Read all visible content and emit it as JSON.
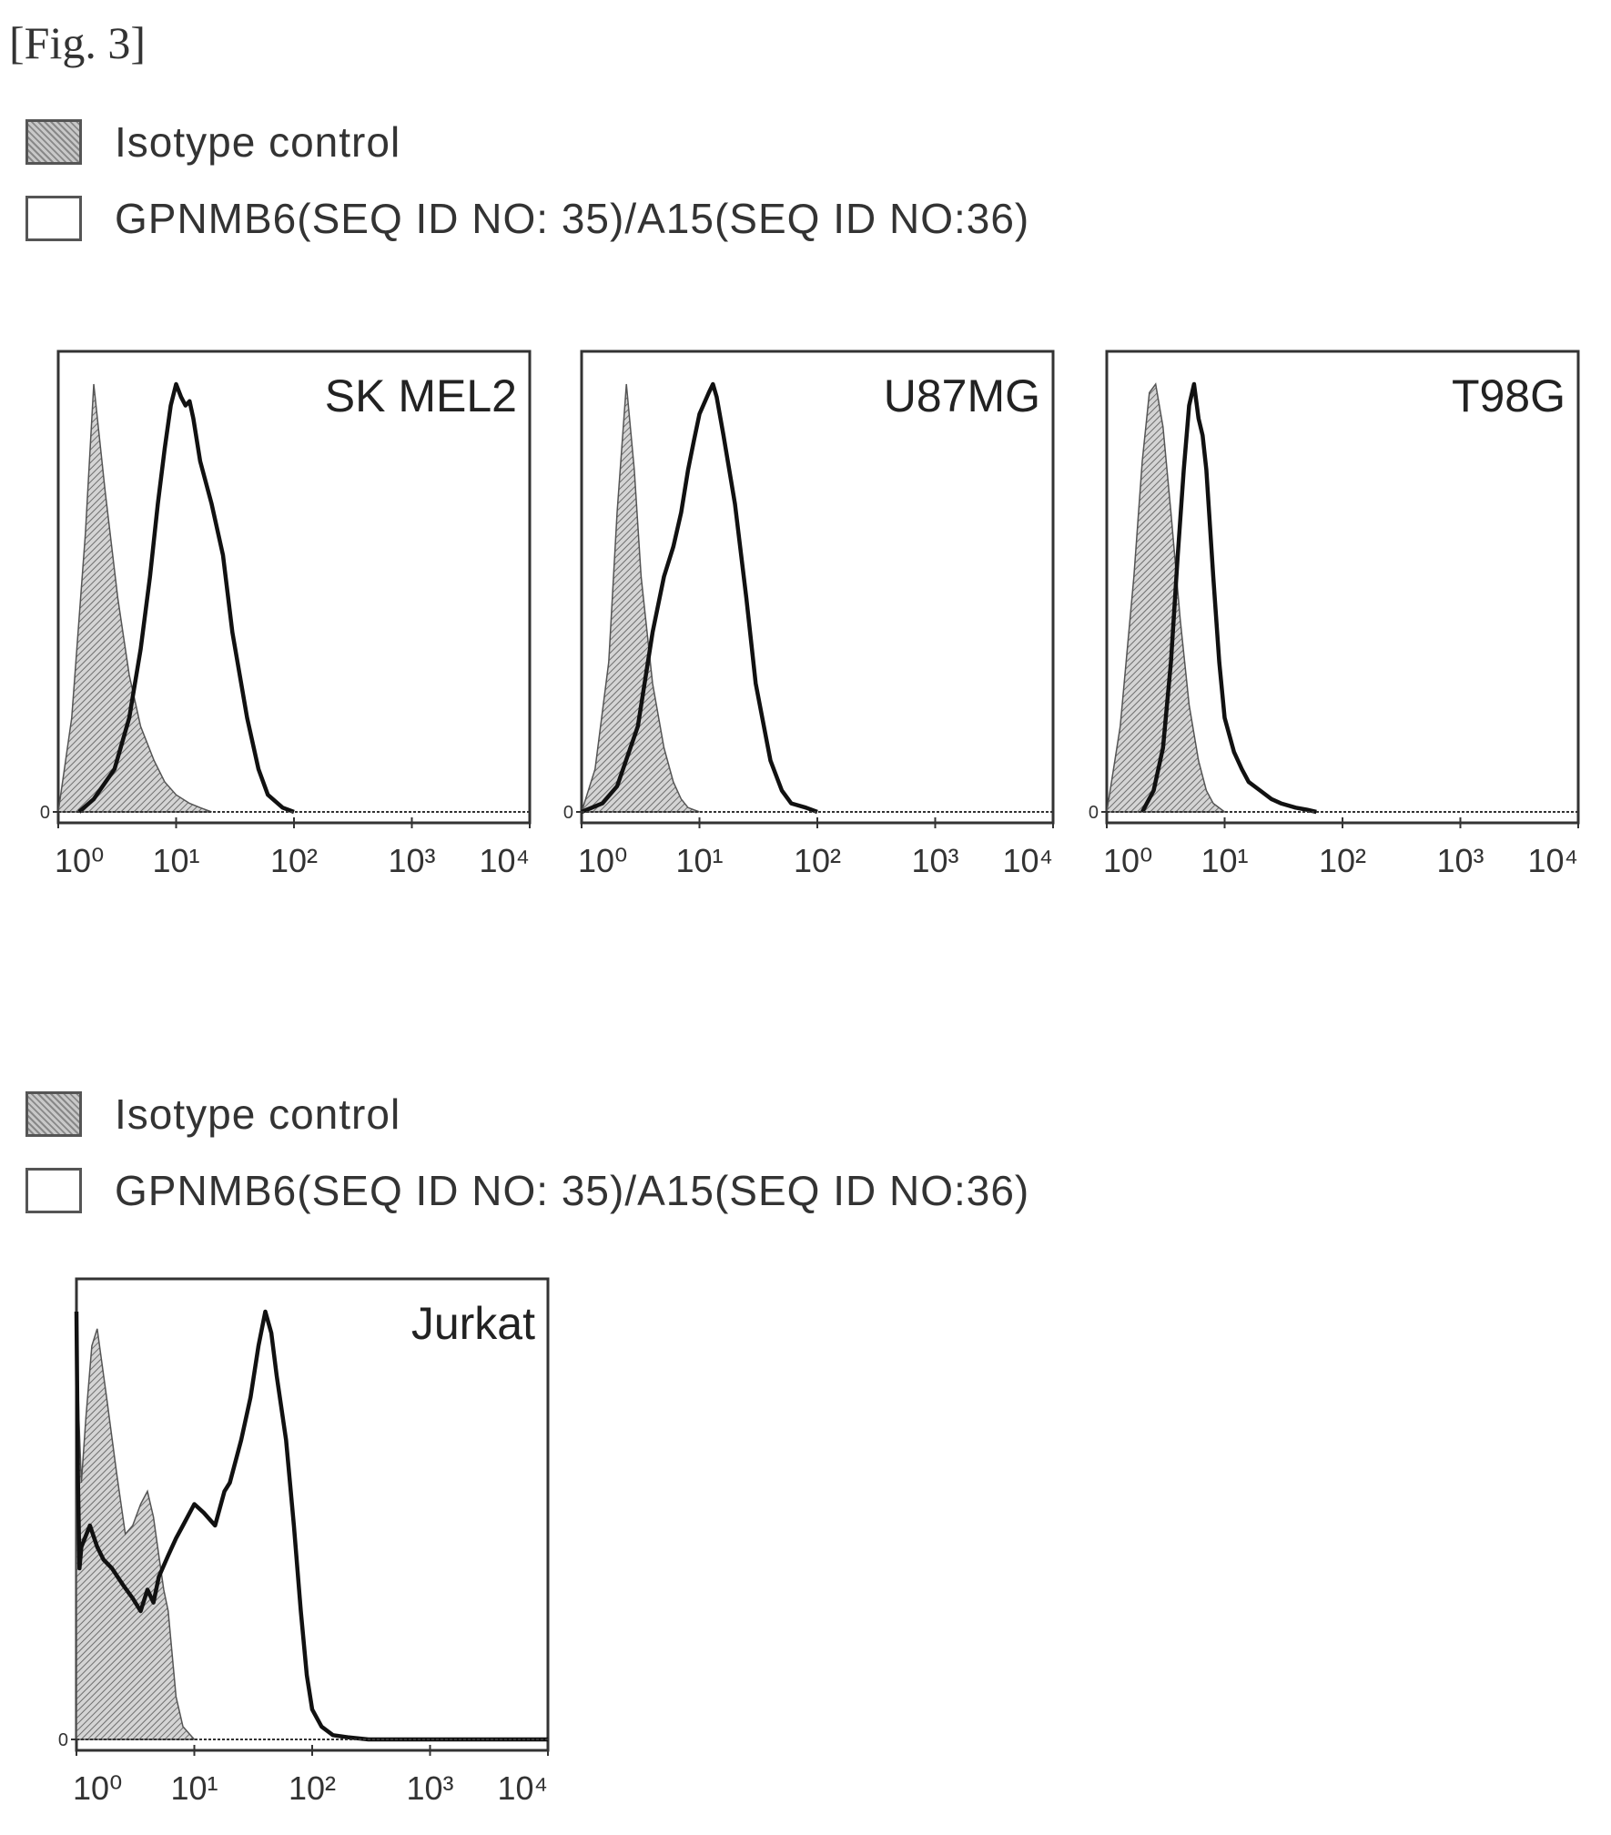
{
  "figure": {
    "label": "[Fig. 3]"
  },
  "legend_top": {
    "items": [
      {
        "label": "Isotype control",
        "style": "hatched"
      },
      {
        "label": "GPNMB6(SEQ ID NO: 35)/A15(SEQ ID NO:36)",
        "style": "open"
      }
    ]
  },
  "legend_bottom": {
    "items": [
      {
        "label": "Isotype control",
        "style": "hatched"
      },
      {
        "label": "GPNMB6(SEQ ID NO: 35)/A15(SEQ ID NO:36)",
        "style": "open"
      }
    ]
  },
  "chart_data": [
    {
      "type": "area",
      "title": "SK MEL2",
      "x_scale": "log",
      "xlim": [
        1,
        10000
      ],
      "x_ticks": [
        "10⁰",
        "10¹",
        "10²",
        "10³",
        "10⁴"
      ],
      "y_ticks": [
        "0"
      ],
      "series": [
        {
          "name": "Isotype control",
          "style": "hatched",
          "x": [
            1,
            1.3,
            1.7,
            2.0,
            2.5,
            3.2,
            4.0,
            5.0,
            6.5,
            8,
            10,
            13,
            16,
            20
          ],
          "y": [
            0,
            0.22,
            0.65,
            1.0,
            0.75,
            0.5,
            0.32,
            0.2,
            0.12,
            0.07,
            0.04,
            0.02,
            0.01,
            0
          ]
        },
        {
          "name": "GPNMB6(SEQ ID NO: 35)/A15(SEQ ID NO:36)",
          "style": "open",
          "x": [
            1.5,
            2,
            3,
            4,
            5,
            6,
            7,
            8,
            9,
            10,
            11,
            12,
            13,
            14,
            16,
            20,
            25,
            30,
            40,
            50,
            60,
            80,
            100
          ],
          "y": [
            0,
            0.03,
            0.1,
            0.22,
            0.38,
            0.55,
            0.72,
            0.85,
            0.95,
            1.0,
            0.97,
            0.95,
            0.96,
            0.92,
            0.82,
            0.72,
            0.6,
            0.42,
            0.22,
            0.1,
            0.04,
            0.01,
            0
          ]
        }
      ]
    },
    {
      "type": "area",
      "title": "U87MG",
      "x_scale": "log",
      "xlim": [
        1,
        10000
      ],
      "x_ticks": [
        "10⁰",
        "10¹",
        "10²",
        "10³",
        "10⁴"
      ],
      "y_ticks": [
        "0"
      ],
      "series": [
        {
          "name": "Isotype control",
          "style": "hatched",
          "x": [
            1,
            1.3,
            1.7,
            2.0,
            2.4,
            2.8,
            3.2,
            4.0,
            5.0,
            6,
            7,
            8,
            10
          ],
          "y": [
            0,
            0.1,
            0.35,
            0.7,
            1.0,
            0.8,
            0.55,
            0.3,
            0.15,
            0.07,
            0.03,
            0.01,
            0
          ]
        },
        {
          "name": "GPNMB6(SEQ ID NO: 35)/A15(SEQ ID NO:36)",
          "style": "open",
          "x": [
            1,
            1.5,
            2,
            3,
            4,
            5,
            6,
            7,
            8,
            9,
            10,
            12,
            13,
            14,
            16,
            20,
            25,
            30,
            40,
            50,
            60,
            80,
            100
          ],
          "y": [
            0,
            0.02,
            0.06,
            0.2,
            0.42,
            0.55,
            0.62,
            0.7,
            0.8,
            0.87,
            0.93,
            0.98,
            1.0,
            0.97,
            0.88,
            0.72,
            0.5,
            0.3,
            0.12,
            0.05,
            0.02,
            0.01,
            0
          ]
        }
      ]
    },
    {
      "type": "area",
      "title": "T98G",
      "x_scale": "log",
      "xlim": [
        1,
        10000
      ],
      "x_ticks": [
        "10⁰",
        "10¹",
        "10²",
        "10³",
        "10⁴"
      ],
      "y_ticks": [
        "0"
      ],
      "series": [
        {
          "name": "Isotype control",
          "style": "hatched",
          "x": [
            1,
            1.3,
            1.7,
            2.0,
            2.3,
            2.6,
            3.0,
            3.5,
            4.2,
            5.0,
            6,
            7,
            8,
            10
          ],
          "y": [
            0,
            0.2,
            0.55,
            0.82,
            0.98,
            1.0,
            0.9,
            0.7,
            0.45,
            0.25,
            0.12,
            0.05,
            0.02,
            0
          ]
        },
        {
          "name": "GPNMB6(SEQ ID NO: 35)/A15(SEQ ID NO:36)",
          "style": "open",
          "x": [
            2,
            2.5,
            3,
            3.5,
            4,
            4.5,
            5,
            5.5,
            6,
            6.5,
            7,
            8,
            9,
            10,
            12,
            14,
            16,
            20,
            25,
            30,
            40,
            50,
            60
          ],
          "y": [
            0,
            0.05,
            0.15,
            0.35,
            0.6,
            0.8,
            0.95,
            1.0,
            0.92,
            0.88,
            0.8,
            0.55,
            0.35,
            0.22,
            0.14,
            0.1,
            0.07,
            0.05,
            0.03,
            0.02,
            0.01,
            0.005,
            0
          ]
        }
      ]
    },
    {
      "type": "area",
      "title": "Jurkat",
      "x_scale": "log",
      "xlim": [
        1,
        10000
      ],
      "x_ticks": [
        "10⁰",
        "10¹",
        "10²",
        "10³",
        "10⁴"
      ],
      "y_ticks": [
        "0"
      ],
      "series": [
        {
          "name": "Isotype control",
          "style": "hatched",
          "x": [
            1,
            1.05,
            1.1,
            1.2,
            1.35,
            1.5,
            1.8,
            2.2,
            2.6,
            3.0,
            3.5,
            4.0,
            4.5,
            5.0,
            5.5,
            6.0,
            7,
            8,
            10
          ],
          "y": [
            1.0,
            0.75,
            0.6,
            0.75,
            0.92,
            0.96,
            0.8,
            0.62,
            0.48,
            0.5,
            0.55,
            0.58,
            0.52,
            0.43,
            0.35,
            0.3,
            0.1,
            0.03,
            0
          ]
        },
        {
          "name": "GPNMB6(SEQ ID NO: 35)/A15(SEQ ID NO:36)",
          "style": "open",
          "x": [
            1,
            1.03,
            1.06,
            1.1,
            1.3,
            1.5,
            1.7,
            2.0,
            2.5,
            3,
            3.5,
            4,
            4.5,
            5,
            6,
            7,
            8,
            10,
            12,
            15,
            18,
            20,
            25,
            30,
            35,
            40,
            45,
            50,
            60,
            70,
            80,
            90,
            100,
            120,
            150,
            200,
            300,
            1000,
            10000
          ],
          "y": [
            1.0,
            0.6,
            0.4,
            0.45,
            0.5,
            0.45,
            0.42,
            0.4,
            0.36,
            0.33,
            0.3,
            0.35,
            0.32,
            0.38,
            0.43,
            0.47,
            0.5,
            0.55,
            0.53,
            0.5,
            0.58,
            0.6,
            0.7,
            0.8,
            0.92,
            1.0,
            0.95,
            0.85,
            0.7,
            0.5,
            0.3,
            0.15,
            0.07,
            0.03,
            0.01,
            0.005,
            0,
            0,
            0
          ]
        }
      ]
    }
  ]
}
